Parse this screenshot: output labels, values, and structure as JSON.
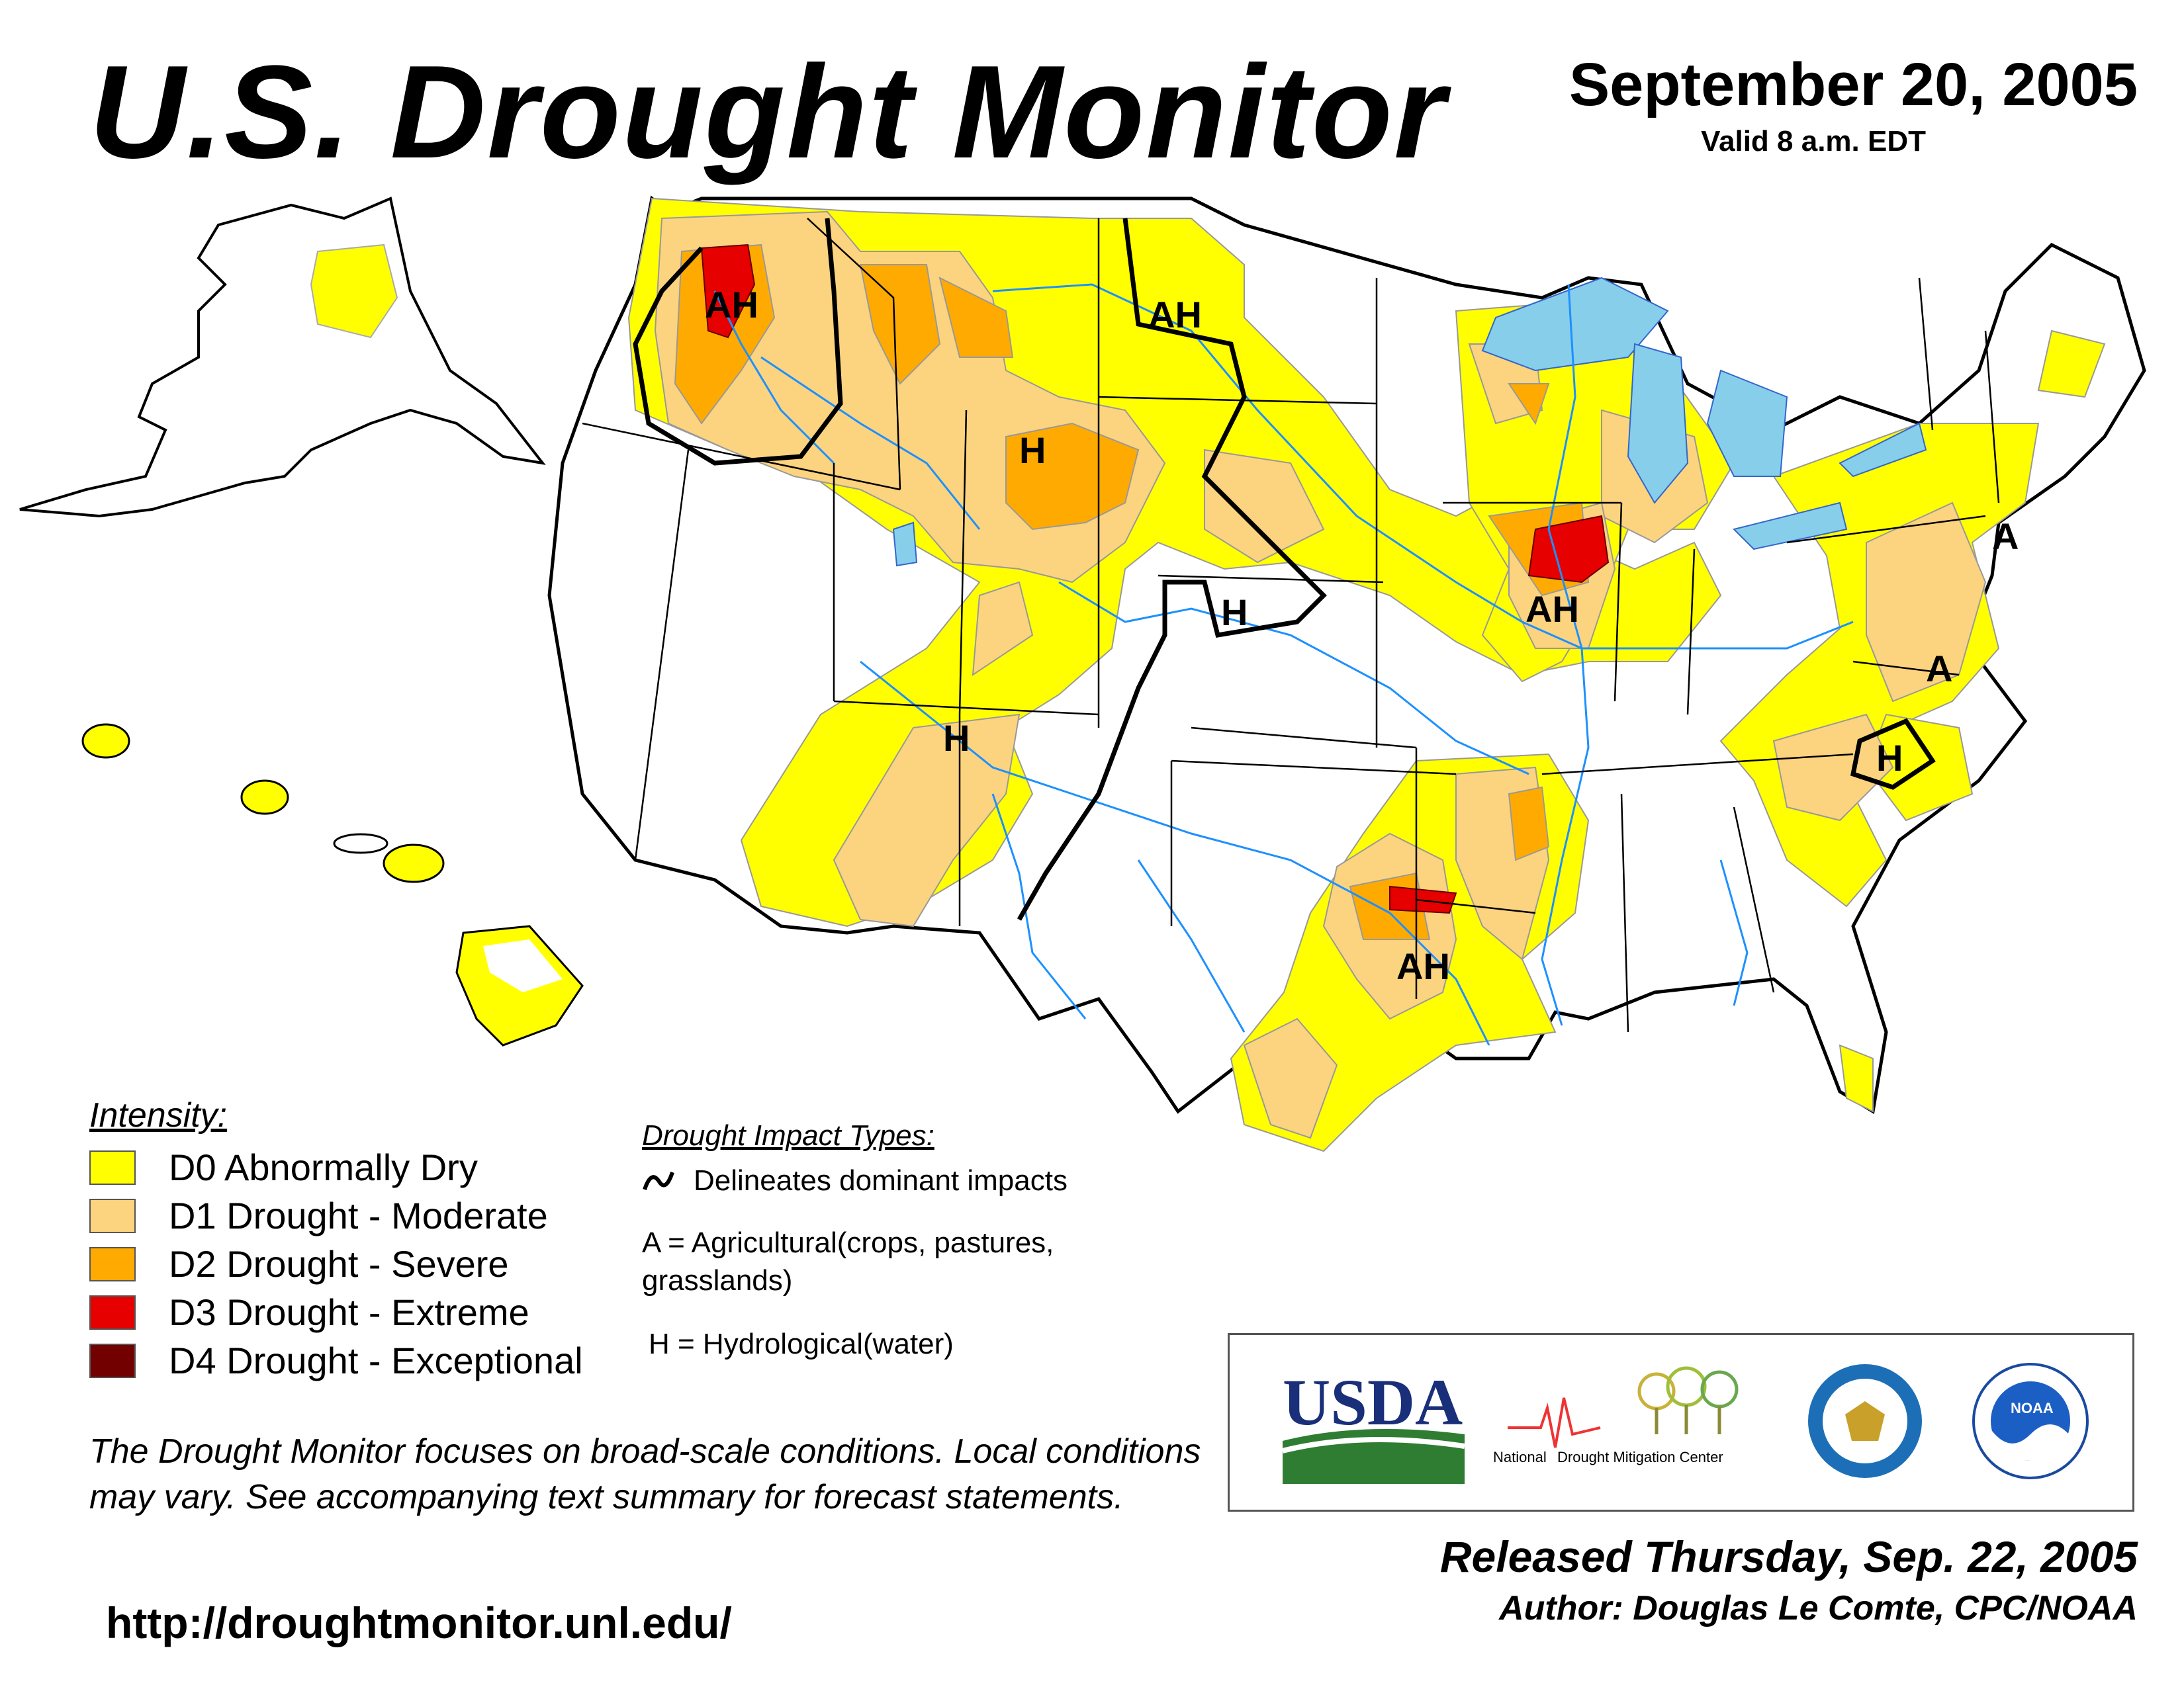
{
  "header": {
    "title": "U.S. Drought Monitor",
    "date": "September 20, 2005",
    "valid": "Valid 8 a.m. EDT"
  },
  "map": {
    "labels": [
      "AH",
      "AH",
      "H",
      "H",
      "H",
      "AH",
      "A",
      "A",
      "H",
      "AH"
    ]
  },
  "legend": {
    "title": "Intensity:",
    "items": [
      {
        "label": "D0 Abnormally Dry",
        "color": "#FFFF00"
      },
      {
        "label": "D1 Drought - Moderate",
        "color": "#FCD37F"
      },
      {
        "label": "D2 Drought - Severe",
        "color": "#FFAA00"
      },
      {
        "label": "D3 Drought - Extreme",
        "color": "#E60000"
      },
      {
        "label": "D4 Drought - Exceptional",
        "color": "#730000"
      }
    ]
  },
  "impacts": {
    "title": "Drought Impact Types:",
    "curve_text": "Delineates dominant impacts",
    "a_text": "A = Agricultural(crops, pastures, grasslands)",
    "h_text": "H = Hydrological(water)"
  },
  "note": "The Drought Monitor focuses on broad-scale conditions. Local conditions may vary. See accompanying text summary for forecast statements.",
  "url": "http://droughtmonitor.unl.edu/",
  "logos": {
    "usda": "USDA",
    "ndmc_left": "National",
    "ndmc_right": "Drought Mitigation Center",
    "noaa": "NOAA"
  },
  "footer": {
    "released": "Released Thursday, Sep. 22, 2005",
    "author": "Author: Douglas Le Comte, CPC/NOAA"
  },
  "colors": {
    "water": "#87CEEB",
    "river": "#1E90FF"
  }
}
